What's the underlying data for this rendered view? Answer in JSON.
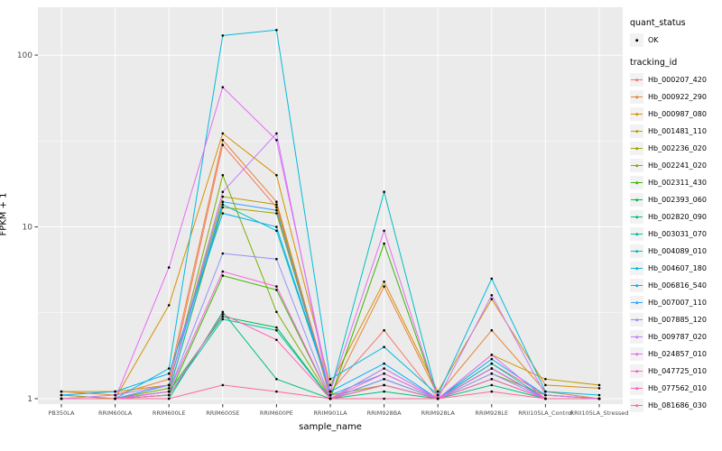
{
  "colors": {
    "panel_bg": "#EBEBEB",
    "grid": "#FFFFFF",
    "point": "#000000",
    "tick_text": "#4D4D4D",
    "tick_mark": "#333333",
    "legend_key_bg": "#F2F2F2"
  },
  "axes": {
    "x_label": "sample_name",
    "y_label": "FPKM + 1",
    "y_ticks": [
      "1",
      "10",
      "100"
    ],
    "y_tick_values": [
      1,
      10,
      100
    ],
    "minor_tick_values": [
      3.1623,
      31.623
    ]
  },
  "legend": {
    "quant_status_title": "quant_status",
    "quant_status_items": [
      {
        "label": "OK"
      }
    ],
    "tracking_title": "tracking_id"
  },
  "chart_data": {
    "type": "line",
    "yscale": "log10",
    "ylim": [
      0.93,
      190
    ],
    "xlabel": "sample_name",
    "ylabel": "FPKM + 1",
    "grid": true,
    "legend_position": "right",
    "categories": [
      "PB350LA",
      "RRIM600LA",
      "RRIM600LE",
      "RRIM600SE",
      "RRIM600PE",
      "RRIM901LA",
      "RRIM928BA",
      "RRIM928LA",
      "RRIM928LE",
      "RRII105LA_Control",
      "RRII105LA_Stressed"
    ],
    "series": [
      {
        "name": "Hb_000207_420",
        "color": "#F8766D",
        "values": [
          1.05,
          1.0,
          1.2,
          30,
          13,
          1.1,
          2.5,
          1.0,
          1.6,
          1.05,
          1.0
        ]
      },
      {
        "name": "Hb_000922_290",
        "color": "#EA8331",
        "values": [
          1.1,
          1.05,
          1.3,
          32,
          14,
          1.05,
          4.5,
          1.05,
          2.5,
          1.1,
          1.0
        ]
      },
      {
        "name": "Hb_000987_080",
        "color": "#D89000",
        "values": [
          1.0,
          1.0,
          3.5,
          35,
          20,
          1.2,
          4.8,
          1.1,
          3.8,
          1.2,
          1.15
        ]
      },
      {
        "name": "Hb_001481_110",
        "color": "#C09B00",
        "values": [
          1.1,
          1.1,
          1.2,
          15,
          13.5,
          1.0,
          1.3,
          1.0,
          1.8,
          1.3,
          1.2
        ]
      },
      {
        "name": "Hb_002236_020",
        "color": "#A3A500",
        "values": [
          1.05,
          1.0,
          1.1,
          13,
          12,
          1.05,
          1.2,
          1.0,
          1.5,
          1.0,
          1.0
        ]
      },
      {
        "name": "Hb_002241_020",
        "color": "#7CAE00",
        "values": [
          1.0,
          1.0,
          1.15,
          20,
          3.2,
          1.0,
          1.5,
          1.0,
          1.4,
          1.05,
          1.0
        ]
      },
      {
        "name": "Hb_002311_430",
        "color": "#39B600",
        "values": [
          1.0,
          1.0,
          1.05,
          5.2,
          4.3,
          1.0,
          8.0,
          1.0,
          1.5,
          1.0,
          1.0
        ]
      },
      {
        "name": "Hb_002393_060",
        "color": "#00BB4E",
        "values": [
          1.0,
          1.0,
          1.1,
          3.0,
          2.6,
          1.0,
          1.2,
          1.0,
          1.3,
          1.0,
          1.0
        ]
      },
      {
        "name": "Hb_002820_090",
        "color": "#00BF7D",
        "values": [
          1.0,
          1.0,
          1.0,
          3.2,
          1.3,
          1.0,
          1.1,
          1.0,
          1.2,
          1.0,
          1.0
        ]
      },
      {
        "name": "Hb_003031_070",
        "color": "#00C1A3",
        "values": [
          1.0,
          1.0,
          1.05,
          2.9,
          2.5,
          1.0,
          1.3,
          1.0,
          1.5,
          1.0,
          1.0
        ]
      },
      {
        "name": "Hb_004089_010",
        "color": "#00BFC4",
        "values": [
          1.0,
          1.0,
          1.1,
          13.5,
          9.5,
          1.1,
          16,
          1.0,
          1.6,
          1.0,
          1.0
        ]
      },
      {
        "name": "Hb_004607_180",
        "color": "#00BAE0",
        "values": [
          1.0,
          1.0,
          1.5,
          130,
          140,
          1.3,
          2.0,
          1.05,
          5.0,
          1.1,
          1.05
        ]
      },
      {
        "name": "Hb_006816_540",
        "color": "#00B0F6",
        "values": [
          1.05,
          1.1,
          1.4,
          12,
          10,
          1.1,
          1.6,
          1.0,
          1.7,
          1.05,
          1.0
        ]
      },
      {
        "name": "Hb_007007_110",
        "color": "#35A2FF",
        "values": [
          1.0,
          1.0,
          1.2,
          14,
          12.5,
          1.05,
          1.4,
          1.0,
          1.5,
          1.0,
          1.0
        ]
      },
      {
        "name": "Hb_007885_120",
        "color": "#9590FF",
        "values": [
          1.0,
          1.0,
          1.1,
          7.0,
          6.5,
          1.0,
          1.3,
          1.0,
          1.4,
          1.0,
          1.0
        ]
      },
      {
        "name": "Hb_009787_020",
        "color": "#C77CFF",
        "values": [
          1.0,
          1.05,
          1.2,
          16,
          35,
          1.0,
          1.5,
          1.0,
          4.0,
          1.05,
          1.0
        ]
      },
      {
        "name": "Hb_024857_010",
        "color": "#E76BF3",
        "values": [
          1.0,
          1.0,
          5.8,
          65,
          32,
          1.1,
          9.5,
          1.0,
          1.8,
          1.0,
          1.0
        ]
      },
      {
        "name": "Hb_047725_010",
        "color": "#FA62DB",
        "values": [
          1.0,
          1.0,
          1.1,
          5.5,
          4.5,
          1.0,
          1.4,
          1.0,
          1.5,
          1.0,
          1.0
        ]
      },
      {
        "name": "Hb_077562_010",
        "color": "#FF62BC",
        "values": [
          1.0,
          1.0,
          1.05,
          3.1,
          2.2,
          1.0,
          1.2,
          1.0,
          1.3,
          1.0,
          1.0
        ]
      },
      {
        "name": "Hb_081686_030",
        "color": "#FF6A98",
        "values": [
          1.0,
          1.0,
          1.0,
          1.2,
          1.1,
          1.0,
          1.0,
          1.0,
          1.1,
          1.0,
          1.0
        ]
      }
    ]
  }
}
